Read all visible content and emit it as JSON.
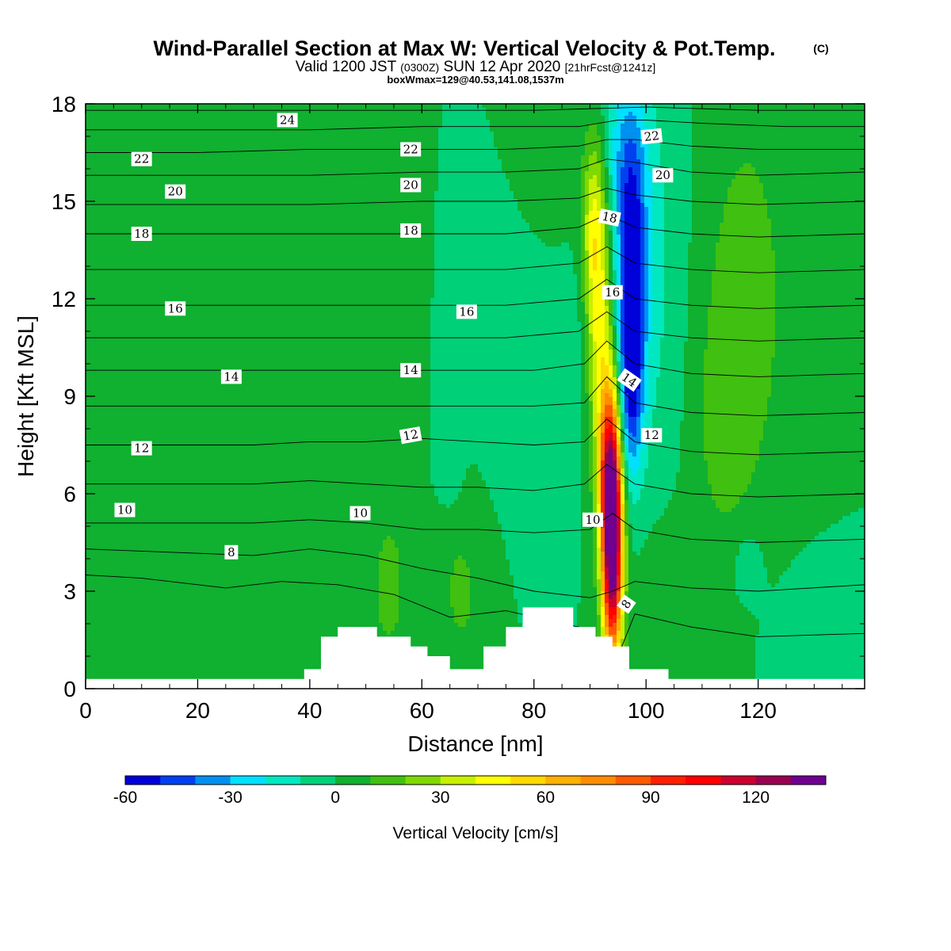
{
  "header": {
    "title": "Wind-Parallel Section at Max W: Vertical Velocity & Pot.Temp.",
    "copyright": "(C)",
    "valid_prefix": "Valid 1200 JST",
    "valid_utc": "(0300Z)",
    "valid_date": "SUN 12 Apr 2020",
    "forecast": "[21hrFcst@1241z]",
    "boxwmax": "boxWmax=129@40.53,141.08,1537m"
  },
  "chart_data": {
    "type": "heatmap",
    "xlabel": "Distance [nm]",
    "ylabel": "Height [Kft MSL]",
    "xlim": [
      0,
      139
    ],
    "ylim": [
      0,
      18
    ],
    "x_ticks": [
      "0",
      "20",
      "40",
      "60",
      "80",
      "100",
      "120"
    ],
    "y_ticks": [
      "0",
      "3",
      "6",
      "9",
      "12",
      "15",
      "18"
    ],
    "x_tick_values": [
      0,
      20,
      40,
      60,
      80,
      100,
      120
    ],
    "y_tick_values": [
      0,
      3,
      6,
      9,
      12,
      15,
      18
    ],
    "grid": false,
    "background_w": 0,
    "w_features": [
      {
        "x": 94,
        "y": 4.2,
        "sx": 1.3,
        "sy": 2.5,
        "a": 130
      },
      {
        "x": 93.5,
        "y": 6.8,
        "sx": 1.4,
        "sy": 2.2,
        "a": 75
      },
      {
        "x": 91.5,
        "y": 11.5,
        "sx": 1.6,
        "sy": 3.0,
        "a": 45
      },
      {
        "x": 90.5,
        "y": 14.5,
        "sx": 1.5,
        "sy": 1.8,
        "a": 25
      },
      {
        "x": 97.5,
        "y": 12.5,
        "sx": 1.7,
        "sy": 2.5,
        "a": -55
      },
      {
        "x": 97.2,
        "y": 9.0,
        "sx": 1.6,
        "sy": 2.0,
        "a": -35
      },
      {
        "x": 96.5,
        "y": 16.5,
        "sx": 2.8,
        "sy": 2.0,
        "a": -25
      },
      {
        "x": 101,
        "y": 12.5,
        "sx": 4.5,
        "sy": 4.5,
        "a": -12
      },
      {
        "x": 82,
        "y": 10.5,
        "sx": 7,
        "sy": 2.5,
        "a": -10
      },
      {
        "x": 65,
        "y": 7.0,
        "sx": 1.5,
        "sy": 1.0,
        "a": -8
      },
      {
        "x": 118,
        "y": 12.0,
        "sx": 6,
        "sy": 5,
        "a": 14
      },
      {
        "x": 113,
        "y": 8.0,
        "sx": 4,
        "sy": 3,
        "a": 8
      },
      {
        "x": 54,
        "y": 3.0,
        "sx": 3,
        "sy": 2,
        "a": 12
      },
      {
        "x": 67,
        "y": 3.0,
        "sx": 3,
        "sy": 1.8,
        "a": 12
      },
      {
        "x": 104,
        "y": 2.5,
        "sx": 4,
        "sy": 1.8,
        "a": 10
      },
      {
        "x": 44,
        "y": 10.0,
        "sx": 1.8,
        "sy": 5,
        "a": 6
      },
      {
        "x": 55,
        "y": 11.0,
        "sx": 2.5,
        "sy": 4,
        "a": 6
      },
      {
        "x": 18,
        "y": 5.5,
        "sx": 2.5,
        "sy": 2,
        "a": 4
      },
      {
        "x": 83,
        "y": 15.0,
        "sx": 4,
        "sy": 3,
        "a": 5
      },
      {
        "x": 128,
        "y": 1.5,
        "sx": 5,
        "sy": 1.5,
        "a": -6
      },
      {
        "x": 118,
        "y": 3.8,
        "sx": 2,
        "sy": 0.8,
        "a": -10
      }
    ],
    "terrain": [
      [
        0,
        0.3
      ],
      [
        39,
        0.3
      ],
      [
        39,
        0.6
      ],
      [
        42,
        0.6
      ],
      [
        42,
        1.6
      ],
      [
        45,
        1.6
      ],
      [
        45,
        1.9
      ],
      [
        52,
        1.9
      ],
      [
        52,
        1.6
      ],
      [
        58,
        1.6
      ],
      [
        58,
        1.3
      ],
      [
        61,
        1.3
      ],
      [
        61,
        1.0
      ],
      [
        65,
        1.0
      ],
      [
        65,
        0.6
      ],
      [
        71,
        0.6
      ],
      [
        71,
        1.3
      ],
      [
        75,
        1.3
      ],
      [
        75,
        1.9
      ],
      [
        78,
        1.9
      ],
      [
        78,
        2.5
      ],
      [
        87,
        2.5
      ],
      [
        87,
        1.9
      ],
      [
        91,
        1.9
      ],
      [
        91,
        1.6
      ],
      [
        94,
        1.6
      ],
      [
        94,
        1.3
      ],
      [
        97,
        1.3
      ],
      [
        97,
        0.6
      ],
      [
        104,
        0.6
      ],
      [
        104,
        0.3
      ],
      [
        139,
        0.3
      ]
    ],
    "theta_contours": [
      {
        "level": "8",
        "pts": [
          [
            0,
            3.5
          ],
          [
            10,
            3.4
          ],
          [
            25,
            3.1
          ],
          [
            35,
            3.3
          ],
          [
            45,
            3.2
          ],
          [
            55,
            2.9
          ],
          [
            65,
            2.2
          ],
          [
            75,
            2.4
          ],
          [
            88,
            1.9
          ],
          [
            93,
            1.0
          ],
          [
            95,
            1.0
          ],
          [
            98,
            2.3
          ],
          [
            108,
            1.9
          ],
          [
            120,
            1.6
          ],
          [
            139,
            1.7
          ]
        ]
      },
      {
        "level": "9",
        "pts": [
          [
            0,
            4.3
          ],
          [
            15,
            4.2
          ],
          [
            30,
            4.1
          ],
          [
            40,
            4.3
          ],
          [
            50,
            4.1
          ],
          [
            60,
            3.7
          ],
          [
            70,
            3.4
          ],
          [
            80,
            3.0
          ],
          [
            90,
            2.8
          ],
          [
            94,
            3.0
          ],
          [
            98,
            3.3
          ],
          [
            108,
            3.1
          ],
          [
            120,
            3.0
          ],
          [
            139,
            3.2
          ]
        ]
      },
      {
        "level": "10",
        "pts": [
          [
            0,
            5.1
          ],
          [
            15,
            5.1
          ],
          [
            30,
            5.1
          ],
          [
            40,
            5.2
          ],
          [
            50,
            5.1
          ],
          [
            60,
            4.9
          ],
          [
            70,
            4.9
          ],
          [
            80,
            4.8
          ],
          [
            90,
            4.9
          ],
          [
            94,
            5.4
          ],
          [
            98,
            4.9
          ],
          [
            108,
            4.6
          ],
          [
            120,
            4.5
          ],
          [
            139,
            4.6
          ]
        ]
      },
      {
        "level": "11",
        "pts": [
          [
            0,
            6.3
          ],
          [
            15,
            6.3
          ],
          [
            30,
            6.3
          ],
          [
            40,
            6.4
          ],
          [
            50,
            6.3
          ],
          [
            60,
            6.2
          ],
          [
            70,
            6.2
          ],
          [
            80,
            6.1
          ],
          [
            89,
            6.3
          ],
          [
            93,
            6.9
          ],
          [
            98,
            6.3
          ],
          [
            108,
            6.0
          ],
          [
            120,
            5.9
          ],
          [
            139,
            6.0
          ]
        ]
      },
      {
        "level": "12",
        "pts": [
          [
            0,
            7.5
          ],
          [
            15,
            7.5
          ],
          [
            30,
            7.5
          ],
          [
            40,
            7.6
          ],
          [
            50,
            7.6
          ],
          [
            60,
            7.7
          ],
          [
            70,
            7.6
          ],
          [
            80,
            7.5
          ],
          [
            89,
            7.6
          ],
          [
            93,
            8.3
          ],
          [
            98,
            7.6
          ],
          [
            108,
            7.3
          ],
          [
            120,
            7.2
          ],
          [
            139,
            7.3
          ]
        ]
      },
      {
        "level": "13",
        "pts": [
          [
            0,
            8.7
          ],
          [
            15,
            8.7
          ],
          [
            30,
            8.7
          ],
          [
            40,
            8.7
          ],
          [
            50,
            8.7
          ],
          [
            60,
            8.7
          ],
          [
            70,
            8.7
          ],
          [
            80,
            8.7
          ],
          [
            89,
            8.8
          ],
          [
            93,
            9.6
          ],
          [
            98,
            8.8
          ],
          [
            108,
            8.5
          ],
          [
            120,
            8.4
          ],
          [
            139,
            8.5
          ]
        ]
      },
      {
        "level": "14",
        "pts": [
          [
            0,
            9.8
          ],
          [
            15,
            9.8
          ],
          [
            30,
            9.8
          ],
          [
            40,
            9.8
          ],
          [
            50,
            9.8
          ],
          [
            60,
            9.8
          ],
          [
            70,
            9.8
          ],
          [
            80,
            9.8
          ],
          [
            89,
            10.0
          ],
          [
            93,
            10.7
          ],
          [
            98,
            10.0
          ],
          [
            108,
            9.7
          ],
          [
            120,
            9.6
          ],
          [
            139,
            9.7
          ]
        ]
      },
      {
        "level": "15",
        "pts": [
          [
            0,
            10.8
          ],
          [
            20,
            10.8
          ],
          [
            40,
            10.8
          ],
          [
            60,
            10.8
          ],
          [
            75,
            10.8
          ],
          [
            88,
            11.0
          ],
          [
            93,
            11.6
          ],
          [
            98,
            11.0
          ],
          [
            108,
            10.8
          ],
          [
            120,
            10.7
          ],
          [
            139,
            10.8
          ]
        ]
      },
      {
        "level": "16",
        "pts": [
          [
            0,
            11.8
          ],
          [
            20,
            11.8
          ],
          [
            40,
            11.8
          ],
          [
            60,
            11.8
          ],
          [
            75,
            11.8
          ],
          [
            88,
            12.0
          ],
          [
            93,
            12.6
          ],
          [
            98,
            12.0
          ],
          [
            108,
            11.8
          ],
          [
            120,
            11.7
          ],
          [
            139,
            11.8
          ]
        ]
      },
      {
        "level": "17",
        "pts": [
          [
            0,
            12.9
          ],
          [
            20,
            12.9
          ],
          [
            40,
            12.9
          ],
          [
            60,
            12.9
          ],
          [
            75,
            12.9
          ],
          [
            88,
            13.1
          ],
          [
            93,
            13.6
          ],
          [
            98,
            13.1
          ],
          [
            108,
            12.9
          ],
          [
            120,
            12.8
          ],
          [
            139,
            12.9
          ]
        ]
      },
      {
        "level": "18",
        "pts": [
          [
            0,
            14.0
          ],
          [
            20,
            14.0
          ],
          [
            40,
            14.0
          ],
          [
            60,
            14.0
          ],
          [
            75,
            14.0
          ],
          [
            88,
            14.2
          ],
          [
            93,
            14.6
          ],
          [
            98,
            14.2
          ],
          [
            108,
            14.0
          ],
          [
            120,
            13.9
          ],
          [
            139,
            14.0
          ]
        ]
      },
      {
        "level": "19",
        "pts": [
          [
            0,
            14.9
          ],
          [
            20,
            14.9
          ],
          [
            40,
            14.9
          ],
          [
            60,
            15.0
          ],
          [
            75,
            15.0
          ],
          [
            88,
            15.1
          ],
          [
            93,
            15.4
          ],
          [
            98,
            15.2
          ],
          [
            108,
            15.0
          ],
          [
            120,
            14.9
          ],
          [
            139,
            15.0
          ]
        ]
      },
      {
        "level": "20",
        "pts": [
          [
            0,
            15.8
          ],
          [
            20,
            15.8
          ],
          [
            40,
            15.8
          ],
          [
            60,
            15.9
          ],
          [
            75,
            15.9
          ],
          [
            88,
            16.0
          ],
          [
            93,
            16.3
          ],
          [
            98,
            16.2
          ],
          [
            108,
            15.9
          ],
          [
            120,
            15.8
          ],
          [
            139,
            15.9
          ]
        ]
      },
      {
        "level": "21",
        "pts": [
          [
            0,
            16.5
          ],
          [
            20,
            16.5
          ],
          [
            40,
            16.6
          ],
          [
            60,
            16.6
          ],
          [
            75,
            16.6
          ],
          [
            88,
            16.7
          ],
          [
            93,
            16.9
          ],
          [
            98,
            16.9
          ],
          [
            108,
            16.7
          ],
          [
            120,
            16.6
          ],
          [
            139,
            16.6
          ]
        ]
      },
      {
        "level": "22",
        "pts": [
          [
            0,
            17.2
          ],
          [
            20,
            17.2
          ],
          [
            40,
            17.2
          ],
          [
            60,
            17.3
          ],
          [
            75,
            17.3
          ],
          [
            88,
            17.3
          ],
          [
            95,
            17.5
          ],
          [
            100,
            17.5
          ],
          [
            110,
            17.4
          ],
          [
            125,
            17.3
          ],
          [
            139,
            17.3
          ]
        ]
      },
      {
        "level": "24",
        "pts": [
          [
            0,
            17.8
          ],
          [
            20,
            17.8
          ],
          [
            40,
            17.8
          ],
          [
            60,
            17.8
          ],
          [
            80,
            17.8
          ],
          [
            100,
            17.9
          ],
          [
            120,
            17.8
          ],
          [
            139,
            17.8
          ]
        ]
      }
    ],
    "contour_labels": [
      {
        "text": "24",
        "x": 36,
        "y": 17.5,
        "rot": 0
      },
      {
        "text": "22",
        "x": 10,
        "y": 16.3,
        "rot": 0
      },
      {
        "text": "22",
        "x": 58,
        "y": 16.6,
        "rot": 0
      },
      {
        "text": "22",
        "x": 101,
        "y": 17.0,
        "rot": -6
      },
      {
        "text": "20",
        "x": 16,
        "y": 15.3,
        "rot": 0
      },
      {
        "text": "20",
        "x": 58,
        "y": 15.5,
        "rot": 0
      },
      {
        "text": "20",
        "x": 103,
        "y": 15.8,
        "rot": 0
      },
      {
        "text": "18",
        "x": 10,
        "y": 14.0,
        "rot": 0
      },
      {
        "text": "18",
        "x": 58,
        "y": 14.1,
        "rot": 0
      },
      {
        "text": "18",
        "x": 93.5,
        "y": 14.5,
        "rot": 12
      },
      {
        "text": "16",
        "x": 16,
        "y": 11.7,
        "rot": 0
      },
      {
        "text": "16",
        "x": 68,
        "y": 11.6,
        "rot": 0
      },
      {
        "text": "16",
        "x": 94,
        "y": 12.2,
        "rot": 0
      },
      {
        "text": "14",
        "x": 26,
        "y": 9.6,
        "rot": 0
      },
      {
        "text": "14",
        "x": 58,
        "y": 9.8,
        "rot": 0
      },
      {
        "text": "14",
        "x": 97,
        "y": 9.5,
        "rot": 35
      },
      {
        "text": "12",
        "x": 10,
        "y": 7.4,
        "rot": 0
      },
      {
        "text": "12",
        "x": 58,
        "y": 7.8,
        "rot": -10
      },
      {
        "text": "12",
        "x": 101,
        "y": 7.8,
        "rot": 0
      },
      {
        "text": "10",
        "x": 7,
        "y": 5.5,
        "rot": 0
      },
      {
        "text": "10",
        "x": 49,
        "y": 5.4,
        "rot": 0
      },
      {
        "text": "10",
        "x": 90.5,
        "y": 5.2,
        "rot": 0
      },
      {
        "text": "8",
        "x": 26,
        "y": 4.2,
        "rot": 0
      },
      {
        "text": "8",
        "x": 96.5,
        "y": 2.6,
        "rot": -55
      }
    ]
  },
  "colorbar": {
    "label": "Vertical Velocity [cm/s]",
    "min": -60,
    "max": 140,
    "step": 10,
    "colors": [
      "#0000d8",
      "#0040f0",
      "#0090f0",
      "#00e0ff",
      "#00e8c0",
      "#00d078",
      "#10b030",
      "#40c010",
      "#80d800",
      "#c8f000",
      "#ffff00",
      "#ffd800",
      "#ffb000",
      "#ff8c00",
      "#ff5a00",
      "#ff2000",
      "#ff0000",
      "#cc0030",
      "#9a0050",
      "#700090"
    ],
    "tick_labels": [
      "-60",
      "-30",
      "0",
      "30",
      "60",
      "90",
      "120"
    ],
    "tick_values": [
      -60,
      -30,
      0,
      30,
      60,
      90,
      120
    ]
  }
}
